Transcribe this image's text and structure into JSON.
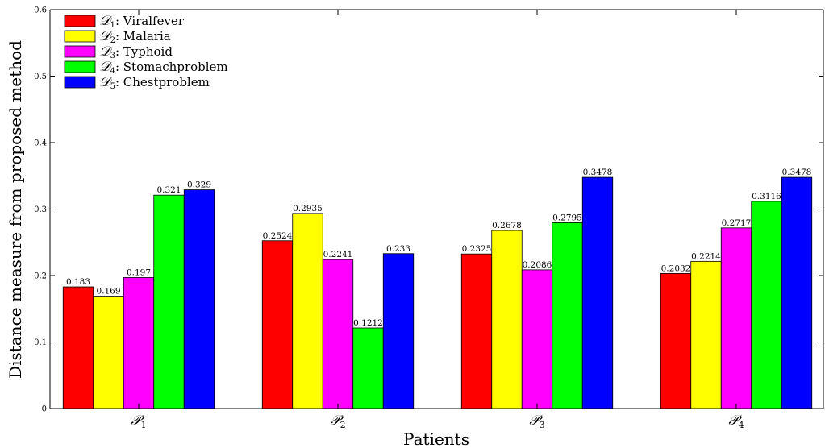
{
  "chart_data": {
    "type": "bar",
    "categories": [
      "P1",
      "P2",
      "P3",
      "P4"
    ],
    "category_symbol": "𝒫",
    "category_subscripts": [
      "1",
      "2",
      "3",
      "4"
    ],
    "series": [
      {
        "symbol": "𝒟",
        "subscript": "1",
        "name": "Viralfever",
        "color": "#ff0000",
        "values": [
          0.183,
          0.2524,
          0.2325,
          0.2032
        ],
        "labels": [
          "0.183",
          "0.2524",
          "0.2325",
          "0.2032"
        ]
      },
      {
        "symbol": "𝒟",
        "subscript": "2",
        "name": "Malaria",
        "color": "#ffff00",
        "values": [
          0.169,
          0.2935,
          0.2678,
          0.2214
        ],
        "labels": [
          "0.169",
          "0.2935",
          "0.2678",
          "0.2214"
        ]
      },
      {
        "symbol": "𝒟",
        "subscript": "3",
        "name": "Typhoid",
        "color": "#ff00ff",
        "values": [
          0.197,
          0.2241,
          0.2086,
          0.2717
        ],
        "labels": [
          "0.197",
          "0.2241",
          "0.2086",
          "0.2717"
        ]
      },
      {
        "symbol": "𝒟",
        "subscript": "4",
        "name": "Stomachproblem",
        "color": "#00ff00",
        "values": [
          0.321,
          0.1212,
          0.2795,
          0.3116
        ],
        "labels": [
          "0.321",
          "0.1212",
          "0.2795",
          "0.3116"
        ]
      },
      {
        "symbol": "𝒟",
        "subscript": "5",
        "name": "Chestproblem",
        "color": "#0000ff",
        "values": [
          0.329,
          0.233,
          0.3478,
          0.3478
        ],
        "labels": [
          "0.329",
          "0.233",
          "0.3478",
          "0.3478"
        ]
      }
    ],
    "xlabel": "Patients",
    "ylabel": "Distance measure from proposed method",
    "ylim": [
      0,
      0.6
    ],
    "yticks": [
      "0",
      "0.1",
      "0.2",
      "0.3",
      "0.4",
      "0.5",
      "0.6"
    ],
    "legend_position": "top-left",
    "grid": false
  }
}
